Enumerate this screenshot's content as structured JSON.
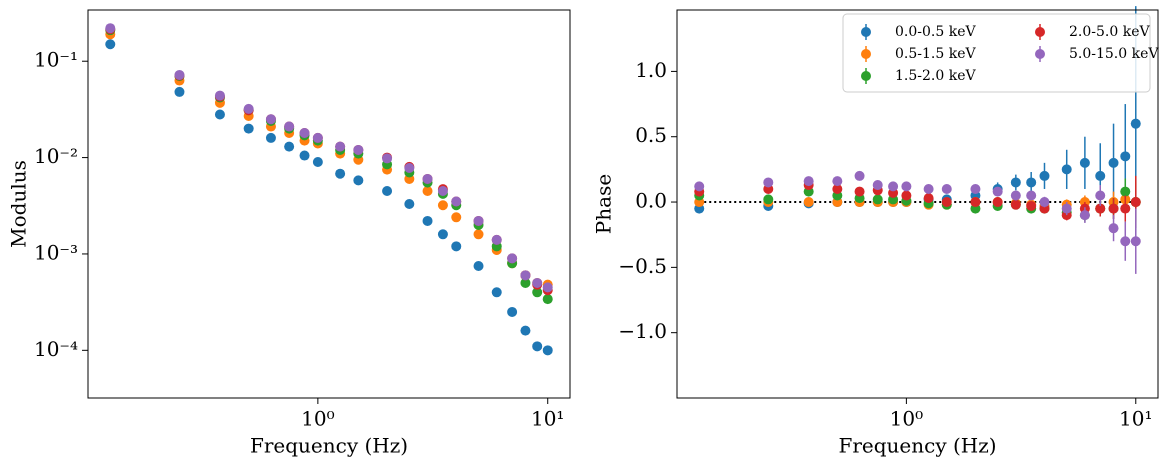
{
  "chart_data": [
    {
      "type": "scatter",
      "xlabel": "Frequency (Hz)",
      "ylabel": "Modulus",
      "xscale": "log",
      "yscale": "log",
      "xlim": [
        0.1,
        12.5
      ],
      "ylim": [
        3.2e-05,
        0.34
      ],
      "xticks": [
        {
          "value": 1,
          "label": "10⁰"
        },
        {
          "value": 10,
          "label": "10¹"
        }
      ],
      "yticks": [
        {
          "value": 0.0001,
          "label": "10⁻⁴"
        },
        {
          "value": 0.001,
          "label": "10⁻³"
        },
        {
          "value": 0.01,
          "label": "10⁻²"
        },
        {
          "value": 0.1,
          "label": "10⁻¹"
        }
      ],
      "x": [
        0.125,
        0.25,
        0.375,
        0.5,
        0.625,
        0.75,
        0.875,
        1.0,
        1.25,
        1.5,
        2,
        2.5,
        3,
        3.5,
        4,
        5,
        6,
        7,
        8,
        9,
        10
      ],
      "series": [
        {
          "color": "#1f77b4",
          "values": [
            0.15,
            0.048,
            0.028,
            0.02,
            0.016,
            0.013,
            0.0105,
            0.009,
            0.0068,
            0.0058,
            0.0045,
            0.0033,
            0.0022,
            0.0016,
            0.0012,
            0.00075,
            0.0004,
            0.00025,
            0.00016,
            0.00011,
            0.0001
          ]
        },
        {
          "color": "#ff7f0e",
          "values": [
            0.19,
            0.063,
            0.037,
            0.027,
            0.021,
            0.018,
            0.015,
            0.014,
            0.011,
            0.0095,
            0.0075,
            0.006,
            0.0045,
            0.0032,
            0.0024,
            0.0016,
            0.0011,
            0.0008,
            0.0006,
            0.0005,
            0.00048
          ]
        },
        {
          "color": "#2ca02c",
          "values": [
            0.21,
            0.07,
            0.042,
            0.031,
            0.024,
            0.02,
            0.017,
            0.015,
            0.012,
            0.011,
            0.0085,
            0.007,
            0.0055,
            0.0042,
            0.0032,
            0.002,
            0.0012,
            0.0008,
            0.0005,
            0.0004,
            0.00034
          ]
        },
        {
          "color": "#d62728",
          "values": [
            0.215,
            0.071,
            0.043,
            0.031,
            0.025,
            0.021,
            0.018,
            0.016,
            0.013,
            0.012,
            0.01,
            0.008,
            0.006,
            0.0047,
            0.0035,
            0.0022,
            0.0014,
            0.0009,
            0.0006,
            0.00048,
            0.00042
          ]
        },
        {
          "color": "#9467bd",
          "values": [
            0.22,
            0.072,
            0.044,
            0.032,
            0.025,
            0.021,
            0.018,
            0.016,
            0.013,
            0.012,
            0.0098,
            0.0078,
            0.006,
            0.0045,
            0.0035,
            0.0022,
            0.0014,
            0.0009,
            0.0006,
            0.0005,
            0.00045
          ]
        }
      ]
    },
    {
      "type": "errorbar",
      "xlabel": "Frequency (Hz)",
      "ylabel": "Phase",
      "xscale": "log",
      "xlim": [
        0.1,
        12.5
      ],
      "ylim": [
        -1.5,
        1.47
      ],
      "hline": 0,
      "legend": "upper right",
      "xticks": [
        {
          "value": 1,
          "label": "10⁰"
        },
        {
          "value": 10,
          "label": "10¹"
        }
      ],
      "yticks": [
        {
          "value": -1,
          "label": "−1.0"
        },
        {
          "value": -0.5,
          "label": "−0.5"
        },
        {
          "value": 0,
          "label": "0.0"
        },
        {
          "value": 0.5,
          "label": "0.5"
        },
        {
          "value": 1,
          "label": "1.0"
        }
      ],
      "x": [
        0.125,
        0.25,
        0.375,
        0.5,
        0.625,
        0.75,
        0.875,
        1.0,
        1.25,
        1.5,
        2,
        2.5,
        3,
        3.5,
        4,
        5,
        6,
        7,
        8,
        9,
        10
      ],
      "series": [
        {
          "name": "0.0-0.5 keV",
          "color": "#1f77b4",
          "values": [
            -0.05,
            -0.03,
            -0.01,
            0,
            0,
            0,
            0,
            0,
            0.02,
            0.02,
            0.05,
            0.1,
            0.15,
            0.15,
            0.2,
            0.25,
            0.3,
            0.2,
            0.3,
            0.35,
            0.6
          ],
          "errors": [
            0.02,
            0.02,
            0.02,
            0.02,
            0.02,
            0.02,
            0.02,
            0.02,
            0.03,
            0.03,
            0.04,
            0.05,
            0.06,
            0.08,
            0.1,
            0.15,
            0.2,
            0.25,
            0.3,
            0.4,
            0.9
          ]
        },
        {
          "name": "0.5-1.5 keV",
          "color": "#ff7f0e",
          "values": [
            0,
            0,
            0,
            0,
            0,
            0,
            0,
            0,
            -0.02,
            -0.02,
            0,
            0,
            -0.01,
            -0.02,
            -0.03,
            -0.02,
            0,
            -0.05,
            0,
            0.02,
            0
          ],
          "errors": [
            0.01,
            0.01,
            0.01,
            0.01,
            0.01,
            0.01,
            0.01,
            0.01,
            0.01,
            0.01,
            0.02,
            0.02,
            0.02,
            0.03,
            0.03,
            0.04,
            0.05,
            0.06,
            0.08,
            0.1,
            0.15
          ]
        },
        {
          "name": "1.5-2.0 keV",
          "color": "#2ca02c",
          "values": [
            0.05,
            0.02,
            0.08,
            0.05,
            0.03,
            0.02,
            0.02,
            0.01,
            -0.01,
            -0.02,
            -0.05,
            -0.03,
            -0.02,
            -0.05,
            -0.05,
            -0.08,
            -0.1,
            -0.05,
            -0.05,
            0.08,
            0
          ],
          "errors": [
            0.01,
            0.01,
            0.01,
            0.01,
            0.01,
            0.01,
            0.01,
            0.01,
            0.01,
            0.01,
            0.02,
            0.02,
            0.02,
            0.03,
            0.03,
            0.04,
            0.05,
            0.06,
            0.08,
            0.1,
            0.2
          ]
        },
        {
          "name": "2.0-5.0 keV",
          "color": "#d62728",
          "values": [
            0.08,
            0.1,
            0.13,
            0.1,
            0.08,
            0.09,
            0.07,
            0.05,
            0.03,
            0,
            0,
            0,
            -0.02,
            -0.03,
            -0.05,
            -0.1,
            -0.05,
            -0.05,
            -0.05,
            -0.05,
            0
          ],
          "errors": [
            0.01,
            0.01,
            0.01,
            0.01,
            0.01,
            0.01,
            0.01,
            0.01,
            0.01,
            0.01,
            0.02,
            0.02,
            0.02,
            0.03,
            0.03,
            0.04,
            0.05,
            0.06,
            0.08,
            0.1,
            0.2
          ]
        },
        {
          "name": "5.0-15.0 keV",
          "color": "#9467bd",
          "values": [
            0.12,
            0.15,
            0.16,
            0.16,
            0.2,
            0.13,
            0.12,
            0.12,
            0.1,
            0.1,
            0.1,
            0.08,
            0.05,
            0.05,
            0,
            -0.05,
            -0.1,
            0.05,
            -0.2,
            -0.3,
            -0.3
          ],
          "errors": [
            0.01,
            0.01,
            0.01,
            0.01,
            0.01,
            0.01,
            0.01,
            0.01,
            0.01,
            0.01,
            0.02,
            0.02,
            0.02,
            0.03,
            0.04,
            0.05,
            0.06,
            0.08,
            0.1,
            0.15,
            0.25
          ]
        }
      ]
    }
  ]
}
